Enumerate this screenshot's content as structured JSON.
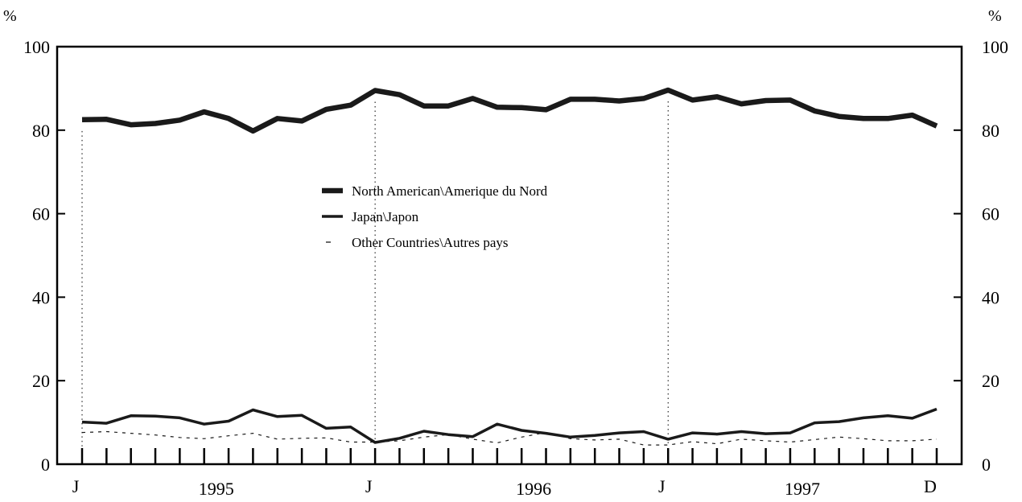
{
  "chart_data": {
    "type": "line",
    "y_unit_left": "%",
    "y_unit_right": "%",
    "ylim": [
      0,
      100
    ],
    "y_ticks": [
      0,
      20,
      40,
      60,
      80,
      100
    ],
    "y_tick_labels": [
      "0",
      "20",
      "40",
      "60",
      "80",
      "100"
    ],
    "x_tick_labels": [
      {
        "label": "J",
        "month_index": 0
      },
      {
        "label": "1995",
        "month_index": 5
      },
      {
        "label": "J",
        "month_index": 12
      },
      {
        "label": "1996",
        "month_index": 18
      },
      {
        "label": "J",
        "month_index": 24
      },
      {
        "label": "1997",
        "month_index": 29
      },
      {
        "label": "D",
        "month_index": 35
      }
    ],
    "x_months": [
      "Jan 1995",
      "Feb 1995",
      "Mar 1995",
      "Apr 1995",
      "May 1995",
      "Jun 1995",
      "Jul 1995",
      "Aug 1995",
      "Sep 1995",
      "Oct 1995",
      "Nov 1995",
      "Dec 1995",
      "Jan 1996",
      "Feb 1996",
      "Mar 1996",
      "Apr 1996",
      "May 1996",
      "Jun 1996",
      "Jul 1996",
      "Aug 1996",
      "Sep 1996",
      "Oct 1996",
      "Nov 1996",
      "Dec 1996",
      "Jan 1997",
      "Feb 1997",
      "Mar 1997",
      "Apr 1997",
      "May 1997",
      "Jun 1997",
      "Jul 1997",
      "Aug 1997",
      "Sep 1997",
      "Oct 1997",
      "Nov 1997",
      "Dec 1997"
    ],
    "year_dividers": [
      0,
      12,
      24
    ],
    "grid": false,
    "legend_position": "center",
    "series": [
      {
        "name": "North American\\Amerique du Nord",
        "style": "thick",
        "color": "#1a1a1a",
        "values": [
          82.5,
          82.6,
          81.3,
          81.6,
          82.4,
          84.4,
          82.8,
          79.8,
          82.8,
          82.2,
          85.0,
          86.0,
          89.5,
          88.5,
          85.8,
          85.8,
          87.6,
          85.5,
          85.4,
          84.9,
          87.4,
          87.4,
          87.0,
          87.6,
          89.6,
          87.2,
          88.0,
          86.3,
          87.1,
          87.2,
          84.6,
          83.3,
          82.8,
          82.8,
          83.6,
          81.0
        ]
      },
      {
        "name": "Japan\\Japon",
        "style": "medium",
        "color": "#1a1a1a",
        "values": [
          10.1,
          9.8,
          11.6,
          11.5,
          11.1,
          9.6,
          10.3,
          13.0,
          11.4,
          11.7,
          8.6,
          8.9,
          5.2,
          6.2,
          7.9,
          7.1,
          6.6,
          9.6,
          8.1,
          7.4,
          6.5,
          6.9,
          7.5,
          7.8,
          6.0,
          7.5,
          7.2,
          7.8,
          7.3,
          7.5,
          9.9,
          10.2,
          11.1,
          11.6,
          11.0,
          13.2
        ]
      },
      {
        "name": "Other Countries\\Autres pays",
        "style": "dashed",
        "color": "#1a1a1a",
        "values": [
          7.6,
          7.8,
          7.4,
          7.0,
          6.4,
          6.1,
          6.8,
          7.4,
          6.0,
          6.2,
          6.3,
          5.3,
          5.3,
          5.6,
          6.5,
          7.1,
          6.0,
          5.1,
          6.5,
          7.6,
          6.1,
          5.8,
          6.0,
          4.6,
          4.6,
          5.4,
          4.9,
          6.0,
          5.6,
          5.3,
          5.9,
          6.5,
          6.1,
          5.6,
          5.6,
          6.0
        ]
      }
    ]
  }
}
